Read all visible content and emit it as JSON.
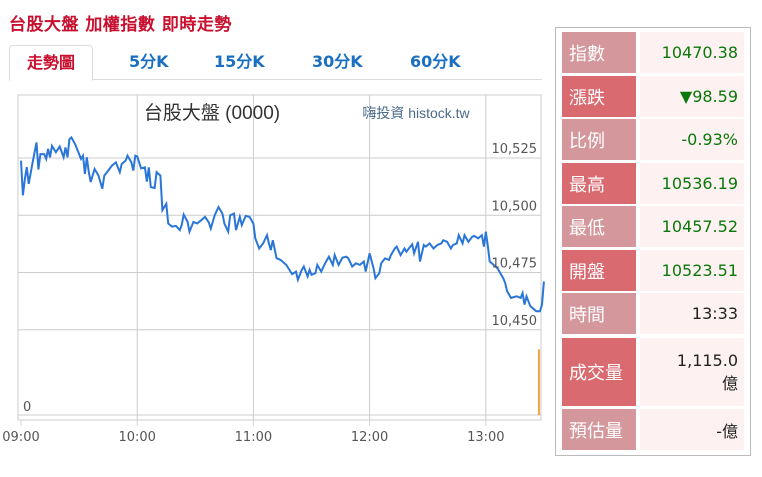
{
  "page_title": "台股大盤 加權指數 即時走勢",
  "tabs": [
    {
      "label": "走勢圖",
      "active": true
    },
    {
      "label": "5分K"
    },
    {
      "label": "15分K"
    },
    {
      "label": "30分K"
    },
    {
      "label": "60分K"
    }
  ],
  "colors": {
    "accent_red": "#c8102e",
    "tab_blue": "#1a6fc0",
    "line": "#2a76d8",
    "volume": "#f5a646",
    "up_down_green": "#0a780a"
  },
  "chart_data": {
    "type": "line",
    "title": "台股大盤 (0000)",
    "watermark": "嗨投資 histock.tw",
    "x_ticks": [
      "09:00",
      "10:00",
      "11:00",
      "12:00",
      "13:00"
    ],
    "x_range": [
      "09:00",
      "13:30"
    ],
    "y_ticks": [
      "10,525",
      "10,500",
      "10,475",
      "10,450"
    ],
    "y_tick_values": [
      10525,
      10500,
      10475,
      10450
    ],
    "volume_axis_label": "0",
    "grid": true,
    "series": [
      {
        "points": [
          [
            "09:00",
            10523.8
          ],
          [
            "09:01",
            10508.7
          ],
          [
            "09:02",
            10515.9
          ],
          [
            "09:03",
            10521
          ],
          [
            "09:04",
            10513.7
          ],
          [
            "09:06",
            10523
          ],
          [
            "09:08",
            10531.8
          ],
          [
            "09:09",
            10520
          ],
          [
            "09:10",
            10526.7
          ],
          [
            "09:12",
            10526.7
          ],
          [
            "09:13",
            10524.6
          ],
          [
            "09:14",
            10529
          ],
          [
            "09:15",
            10525.3
          ],
          [
            "09:16",
            10530.3
          ],
          [
            "09:18",
            10527.5
          ],
          [
            "09:20",
            10530
          ],
          [
            "09:22",
            10525.3
          ],
          [
            "09:23",
            10529.6
          ],
          [
            "09:24",
            10525.3
          ],
          [
            "09:25",
            10533.2
          ],
          [
            "09:26",
            10534
          ],
          [
            "09:28",
            10531
          ],
          [
            "09:30",
            10526.7
          ],
          [
            "09:31",
            10524.6
          ],
          [
            "09:32",
            10526
          ],
          [
            "09:33",
            10518
          ],
          [
            "09:34",
            10525.3
          ],
          [
            "09:35",
            10518.8
          ],
          [
            "09:36",
            10514.5
          ],
          [
            "09:38",
            10520.2
          ],
          [
            "09:40",
            10517.3
          ],
          [
            "09:42",
            10511.6
          ],
          [
            "09:43",
            10517.3
          ],
          [
            "09:45",
            10519.5
          ],
          [
            "09:47",
            10521.7
          ],
          [
            "09:49",
            10523.1
          ],
          [
            "09:51",
            10518.8
          ],
          [
            "09:52",
            10522.4
          ],
          [
            "09:54",
            10523.8
          ],
          [
            "09:55",
            10526
          ],
          [
            "09:57",
            10523.1
          ],
          [
            "09:58",
            10519.5
          ],
          [
            "09:59",
            10526
          ],
          [
            "10:00",
            10525.7
          ],
          [
            "10:02",
            10520.5
          ],
          [
            "10:04",
            10520.9
          ],
          [
            "10:05",
            10514.7
          ],
          [
            "10:06",
            10520.9
          ],
          [
            "10:07",
            10512.3
          ],
          [
            "10:09",
            10511.9
          ],
          [
            "10:10",
            10518.8
          ],
          [
            "10:12",
            10517.3
          ],
          [
            "10:13",
            10502.2
          ],
          [
            "10:14",
            10503.6
          ],
          [
            "10:15",
            10505
          ],
          [
            "10:16",
            10496.4
          ],
          [
            "10:18",
            10495
          ],
          [
            "10:20",
            10495.4
          ],
          [
            "10:22",
            10493.5
          ],
          [
            "10:23",
            10495.7
          ],
          [
            "10:24",
            10500.3
          ],
          [
            "10:26",
            10497.1
          ],
          [
            "10:27",
            10492.8
          ],
          [
            "10:29",
            10497.1
          ],
          [
            "10:31",
            10496.4
          ],
          [
            "10:33",
            10497.8
          ],
          [
            "10:35",
            10499.3
          ],
          [
            "10:37",
            10496.8
          ],
          [
            "10:38",
            10494.2
          ],
          [
            "10:40",
            10500
          ],
          [
            "10:42",
            10503.6
          ],
          [
            "10:44",
            10500.7
          ],
          [
            "10:45",
            10496.4
          ],
          [
            "10:47",
            10492.8
          ],
          [
            "10:48",
            10500
          ],
          [
            "10:50",
            10500.7
          ],
          [
            "10:51",
            10493.5
          ],
          [
            "10:53",
            10499.3
          ],
          [
            "10:54",
            10495.7
          ],
          [
            "10:56",
            10499.7
          ],
          [
            "10:58",
            10499.3
          ],
          [
            "11:00",
            10496.4
          ],
          [
            "11:01",
            10489.9
          ],
          [
            "11:03",
            10485.5
          ],
          [
            "11:05",
            10487.7
          ],
          [
            "11:07",
            10491.3
          ],
          [
            "11:08",
            10487.7
          ],
          [
            "11:09",
            10484.8
          ],
          [
            "11:10",
            10489.1
          ],
          [
            "11:12",
            10481.2
          ],
          [
            "11:14",
            10480.5
          ],
          [
            "11:17",
            10478.3
          ],
          [
            "11:18",
            10476.9
          ],
          [
            "11:20",
            10474.3
          ],
          [
            "11:22",
            10475.4
          ],
          [
            "11:23",
            10471.8
          ],
          [
            "11:25",
            10476.2
          ],
          [
            "11:26",
            10477.6
          ],
          [
            "11:28",
            10473.3
          ],
          [
            "11:29",
            10476.2
          ],
          [
            "11:30",
            10474
          ],
          [
            "11:32",
            10474.7
          ],
          [
            "11:33",
            10478.3
          ],
          [
            "11:35",
            10475.4
          ],
          [
            "11:37",
            10479
          ],
          [
            "11:39",
            10481.9
          ],
          [
            "11:41",
            10478.3
          ],
          [
            "11:42",
            10482.6
          ],
          [
            "11:44",
            10478.3
          ],
          [
            "11:46",
            10481.5
          ],
          [
            "11:48",
            10481.9
          ],
          [
            "11:49",
            10481.2
          ],
          [
            "11:51",
            10477.6
          ],
          [
            "11:53",
            10479
          ],
          [
            "11:55",
            10478.3
          ],
          [
            "11:57",
            10479.8
          ],
          [
            "11:58",
            10475.4
          ],
          [
            "12:00",
            10483.4
          ],
          [
            "12:02",
            10476.9
          ],
          [
            "12:03",
            10472.5
          ],
          [
            "12:05",
            10474.7
          ],
          [
            "12:06",
            10479
          ],
          [
            "12:08",
            10481.2
          ],
          [
            "12:10",
            10480.5
          ],
          [
            "12:11",
            10482.6
          ],
          [
            "12:13",
            10485.5
          ],
          [
            "12:14",
            10486.3
          ],
          [
            "12:16",
            10482.6
          ],
          [
            "12:18",
            10485.5
          ],
          [
            "12:19",
            10484.1
          ],
          [
            "12:21",
            10486.3
          ],
          [
            "12:22",
            10487.3
          ],
          [
            "12:23",
            10483.4
          ],
          [
            "12:25",
            10488.4
          ],
          [
            "12:26",
            10479.8
          ],
          [
            "12:28",
            10487
          ],
          [
            "12:29",
            10486.3
          ],
          [
            "12:31",
            10487.7
          ],
          [
            "12:33",
            10485.5
          ],
          [
            "12:35",
            10487
          ],
          [
            "12:37",
            10487.7
          ],
          [
            "12:38",
            10489.1
          ],
          [
            "12:40",
            10488.4
          ],
          [
            "12:42",
            10485.5
          ],
          [
            "12:43",
            10487
          ],
          [
            "12:45",
            10487.7
          ],
          [
            "12:46",
            10491.3
          ],
          [
            "12:48",
            10487.7
          ],
          [
            "12:49",
            10491.3
          ],
          [
            "12:51",
            10488.4
          ],
          [
            "12:53",
            10490.6
          ],
          [
            "12:54",
            10491
          ],
          [
            "12:56",
            10489.9
          ],
          [
            "12:58",
            10491.3
          ],
          [
            "12:59",
            10486.3
          ],
          [
            "13:00",
            10492.8
          ],
          [
            "13:01",
            10487
          ],
          [
            "13:02",
            10479.8
          ],
          [
            "13:06",
            10476.9
          ],
          [
            "13:09",
            10472.5
          ],
          [
            "13:10",
            10470.4
          ],
          [
            "13:11",
            10466.8
          ],
          [
            "13:13",
            10463.9
          ],
          [
            "13:16",
            10464.6
          ],
          [
            "13:18",
            10463.9
          ],
          [
            "13:19",
            10466
          ],
          [
            "13:20",
            10461
          ],
          [
            "13:21",
            10464.6
          ],
          [
            "13:23",
            10460.3
          ],
          [
            "13:26",
            10458.1
          ],
          [
            "13:28",
            10458.1
          ],
          [
            "13:29",
            10461
          ],
          [
            "13:30",
            10471.1
          ]
        ]
      }
    ],
    "volume_level": [
      [
        "13:30",
        0.8
      ]
    ]
  },
  "quote": [
    {
      "label": "指數",
      "value": "10470.38",
      "green": true
    },
    {
      "label": "漲跌",
      "value": "▼98.59",
      "green": true
    },
    {
      "label": "比例",
      "value": "-0.93%",
      "green": true
    },
    {
      "label": "最高",
      "value": "10536.19",
      "green": true
    },
    {
      "label": "最低",
      "value": "10457.52",
      "green": true
    },
    {
      "label": "開盤",
      "value": "10523.51",
      "green": true
    },
    {
      "label": "時間",
      "value": "13:33"
    },
    {
      "label": "成交量",
      "value": "1,115.0",
      "unit": "億"
    },
    {
      "label": "預估量",
      "value": "-億"
    }
  ]
}
